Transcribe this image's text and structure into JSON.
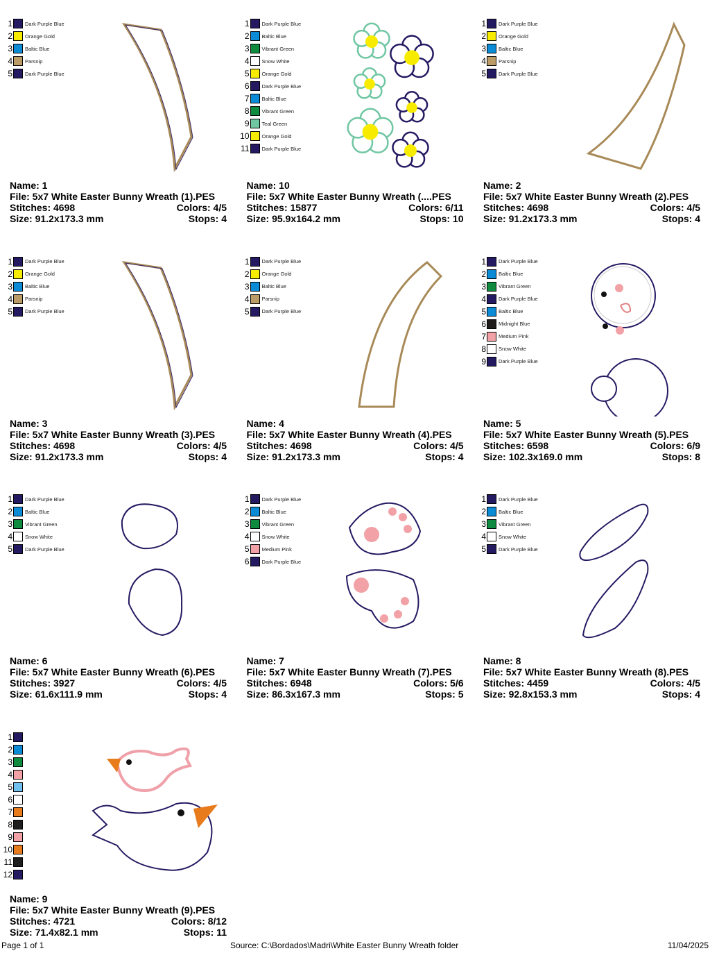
{
  "colors": {
    "dark_purple_blue": "#241a62",
    "orange_gold": "#f7ec00",
    "baltic_blue": "#0b8ad6",
    "parsnip": "#bb9b66",
    "vibrant_green": "#0f8b3f",
    "snow_white": "#ffffff",
    "teal_green": "#6fc6a2",
    "midnight_blue": "#1e1a1a",
    "medium_pink": "#f2a2a6",
    "light_blue": "#6fc0ee",
    "orange": "#e87b1c",
    "black": "#1e1e1e"
  },
  "designs": [
    {
      "name": "Name: 1",
      "file": "File: 5x7 White Easter Bunny Wreath (1).PES",
      "stitches": "Stitches: 4698",
      "colors": "Colors: 4/5",
      "size": "Size: 91.2x173.3 mm",
      "stops": "Stops: 4",
      "art": "arc-right",
      "legend": [
        {
          "num": "1",
          "label": "Dark Purple Blue",
          "hex": "#241a62"
        },
        {
          "num": "2",
          "label": "Orange Gold",
          "hex": "#f7ec00"
        },
        {
          "num": "3",
          "label": "Baltic Blue",
          "hex": "#0b8ad6"
        },
        {
          "num": "4",
          "label": "Parsnip",
          "hex": "#bb9b66"
        },
        {
          "num": "5",
          "label": "Dark Purple Blue",
          "hex": "#241a62"
        }
      ]
    },
    {
      "name": "Name: 10",
      "file": "File: 5x7 White Easter Bunny Wreath (....PES",
      "stitches": "Stitches: 15877",
      "colors": "Colors: 6/11",
      "size": "Size: 95.9x164.2 mm",
      "stops": "Stops: 10",
      "art": "flowers",
      "legend": [
        {
          "num": "1",
          "label": "Dark Purple Blue",
          "hex": "#241a62"
        },
        {
          "num": "2",
          "label": "Baltic Blue",
          "hex": "#0b8ad6"
        },
        {
          "num": "3",
          "label": "Vibrant Green",
          "hex": "#0f8b3f"
        },
        {
          "num": "4",
          "label": "Snow White",
          "hex": "#ffffff"
        },
        {
          "num": "5",
          "label": "Orange Gold",
          "hex": "#f7ec00"
        },
        {
          "num": "6",
          "label": "Dark Purple Blue",
          "hex": "#241a62"
        },
        {
          "num": "7",
          "label": "Baltic Blue",
          "hex": "#0b8ad6"
        },
        {
          "num": "8",
          "label": "Vibrant Green",
          "hex": "#0f8b3f"
        },
        {
          "num": "9",
          "label": "Teal Green",
          "hex": "#6fc6a2"
        },
        {
          "num": "10",
          "label": "Orange Gold",
          "hex": "#f7ec00"
        },
        {
          "num": "11",
          "label": "Dark Purple Blue",
          "hex": "#241a62"
        }
      ]
    },
    {
      "name": "Name: 2",
      "file": "File: 5x7 White Easter Bunny Wreath (2).PES",
      "stitches": "Stitches: 4698",
      "colors": "Colors: 4/5",
      "size": "Size: 91.2x173.3 mm",
      "stops": "Stops: 4",
      "art": "arc-left-bottom",
      "legend": [
        {
          "num": "1",
          "label": "Dark Purple Blue",
          "hex": "#241a62"
        },
        {
          "num": "2",
          "label": "Orange Gold",
          "hex": "#f7ec00"
        },
        {
          "num": "3",
          "label": "Baltic Blue",
          "hex": "#0b8ad6"
        },
        {
          "num": "4",
          "label": "Parsnip",
          "hex": "#bb9b66"
        },
        {
          "num": "5",
          "label": "Dark Purple Blue",
          "hex": "#241a62"
        }
      ]
    },
    {
      "name": "Name: 3",
      "file": "File: 5x7 White Easter Bunny Wreath (3).PES",
      "stitches": "Stitches: 4698",
      "colors": "Colors: 4/5",
      "size": "Size: 91.2x173.3 mm",
      "stops": "Stops: 4",
      "art": "arc-right",
      "legend": [
        {
          "num": "1",
          "label": "Dark Purple Blue",
          "hex": "#241a62"
        },
        {
          "num": "2",
          "label": "Orange Gold",
          "hex": "#f7ec00"
        },
        {
          "num": "3",
          "label": "Baltic Blue",
          "hex": "#0b8ad6"
        },
        {
          "num": "4",
          "label": "Parsnip",
          "hex": "#bb9b66"
        },
        {
          "num": "5",
          "label": "Dark Purple Blue",
          "hex": "#241a62"
        }
      ]
    },
    {
      "name": "Name: 4",
      "file": "File: 5x7 White Easter Bunny Wreath (4).PES",
      "stitches": "Stitches: 4698",
      "colors": "Colors: 4/5",
      "size": "Size: 91.2x173.3 mm",
      "stops": "Stops: 4",
      "art": "arc-left",
      "legend": [
        {
          "num": "1",
          "label": "Dark Purple Blue",
          "hex": "#241a62"
        },
        {
          "num": "2",
          "label": "Orange Gold",
          "hex": "#f7ec00"
        },
        {
          "num": "3",
          "label": "Baltic Blue",
          "hex": "#0b8ad6"
        },
        {
          "num": "4",
          "label": "Parsnip",
          "hex": "#bb9b66"
        },
        {
          "num": "5",
          "label": "Dark Purple Blue",
          "hex": "#241a62"
        }
      ]
    },
    {
      "name": "Name: 5",
      "file": "File: 5x7 White Easter Bunny Wreath (5).PES",
      "stitches": "Stitches: 6598",
      "colors": "Colors: 6/9",
      "size": "Size: 102.3x169.0 mm",
      "stops": "Stops: 8",
      "art": "bunny",
      "legend": [
        {
          "num": "1",
          "label": "Dark Purple Blue",
          "hex": "#241a62"
        },
        {
          "num": "2",
          "label": "Baltic Blue",
          "hex": "#0b8ad6"
        },
        {
          "num": "3",
          "label": "Vibrant Green",
          "hex": "#0f8b3f"
        },
        {
          "num": "4",
          "label": "Dark Purple Blue",
          "hex": "#241a62"
        },
        {
          "num": "5",
          "label": "Baltic Blue",
          "hex": "#0b8ad6"
        },
        {
          "num": "6",
          "label": "Midnight Blue",
          "hex": "#1e1a1a"
        },
        {
          "num": "7",
          "label": "Medium Pink",
          "hex": "#f2a2a6"
        },
        {
          "num": "8",
          "label": "Snow White",
          "hex": "#ffffff"
        },
        {
          "num": "9",
          "label": "Dark Purple Blue",
          "hex": "#241a62"
        }
      ]
    },
    {
      "name": "Name: 6",
      "file": "File: 5x7 White Easter Bunny Wreath (6).PES",
      "stitches": "Stitches: 3927",
      "colors": "Colors: 4/5",
      "size": "Size: 61.6x111.9 mm",
      "stops": "Stops: 4",
      "art": "paws",
      "legend": [
        {
          "num": "1",
          "label": "Dark Purple Blue",
          "hex": "#241a62"
        },
        {
          "num": "2",
          "label": "Baltic Blue",
          "hex": "#0b8ad6"
        },
        {
          "num": "3",
          "label": "Vibrant Green",
          "hex": "#0f8b3f"
        },
        {
          "num": "4",
          "label": "Snow White",
          "hex": "#ffffff"
        },
        {
          "num": "5",
          "label": "Dark Purple Blue",
          "hex": "#241a62"
        }
      ]
    },
    {
      "name": "Name: 7",
      "file": "File: 5x7 White Easter Bunny Wreath (7).PES",
      "stitches": "Stitches: 6948",
      "colors": "Colors: 5/6",
      "size": "Size: 86.3x167.3 mm",
      "stops": "Stops: 5",
      "art": "feet",
      "legend": [
        {
          "num": "1",
          "label": "Dark Purple Blue",
          "hex": "#241a62"
        },
        {
          "num": "2",
          "label": "Baltic Blue",
          "hex": "#0b8ad6"
        },
        {
          "num": "3",
          "label": "Vibrant Green",
          "hex": "#0f8b3f"
        },
        {
          "num": "4",
          "label": "Snow White",
          "hex": "#ffffff"
        },
        {
          "num": "5",
          "label": "Medium Pink",
          "hex": "#f2a2a6"
        },
        {
          "num": "6",
          "label": "Dark Purple Blue",
          "hex": "#241a62"
        }
      ]
    },
    {
      "name": "Name: 8",
      "file": "File: 5x7 White Easter Bunny Wreath (8).PES",
      "stitches": "Stitches: 4459",
      "colors": "Colors: 4/5",
      "size": "Size: 92.8x153.3 mm",
      "stops": "Stops: 4",
      "art": "ears",
      "legend": [
        {
          "num": "1",
          "label": "Dark Purple Blue",
          "hex": "#241a62"
        },
        {
          "num": "2",
          "label": "Baltic Blue",
          "hex": "#0b8ad6"
        },
        {
          "num": "3",
          "label": "Vibrant Green",
          "hex": "#0f8b3f"
        },
        {
          "num": "4",
          "label": "Snow White",
          "hex": "#ffffff"
        },
        {
          "num": "5",
          "label": "Dark Purple Blue",
          "hex": "#241a62"
        }
      ]
    },
    {
      "name": "Name: 9",
      "file": "File: 5x7 White Easter Bunny Wreath (9).PES",
      "stitches": "Stitches: 4721",
      "colors": "Colors: 8/12",
      "size": "Size: 71.4x82.1 mm",
      "stops": "Stops: 11",
      "art": "birds",
      "legend": [
        {
          "num": "1",
          "label": "",
          "hex": "#241a62"
        },
        {
          "num": "2",
          "label": "",
          "hex": "#0b8ad6"
        },
        {
          "num": "3",
          "label": "",
          "hex": "#0f8b3f"
        },
        {
          "num": "4",
          "label": "",
          "hex": "#f2a2a6"
        },
        {
          "num": "5",
          "label": "",
          "hex": "#6fc0ee"
        },
        {
          "num": "6",
          "label": "",
          "hex": "#ffffff"
        },
        {
          "num": "7",
          "label": "",
          "hex": "#e87b1c"
        },
        {
          "num": "8",
          "label": "",
          "hex": "#1e1e1e"
        },
        {
          "num": "9",
          "label": "",
          "hex": "#f2a2a6"
        },
        {
          "num": "10",
          "label": "",
          "hex": "#e87b1c"
        },
        {
          "num": "11",
          "label": "",
          "hex": "#1e1e1e"
        },
        {
          "num": "12",
          "label": "",
          "hex": "#241a62"
        }
      ]
    }
  ],
  "footer": {
    "page": "Page 1 of 1",
    "source": "Source: C:\\Bordados\\Madri\\White Easter Bunny Wreath folder",
    "date": "11/04/2025"
  }
}
